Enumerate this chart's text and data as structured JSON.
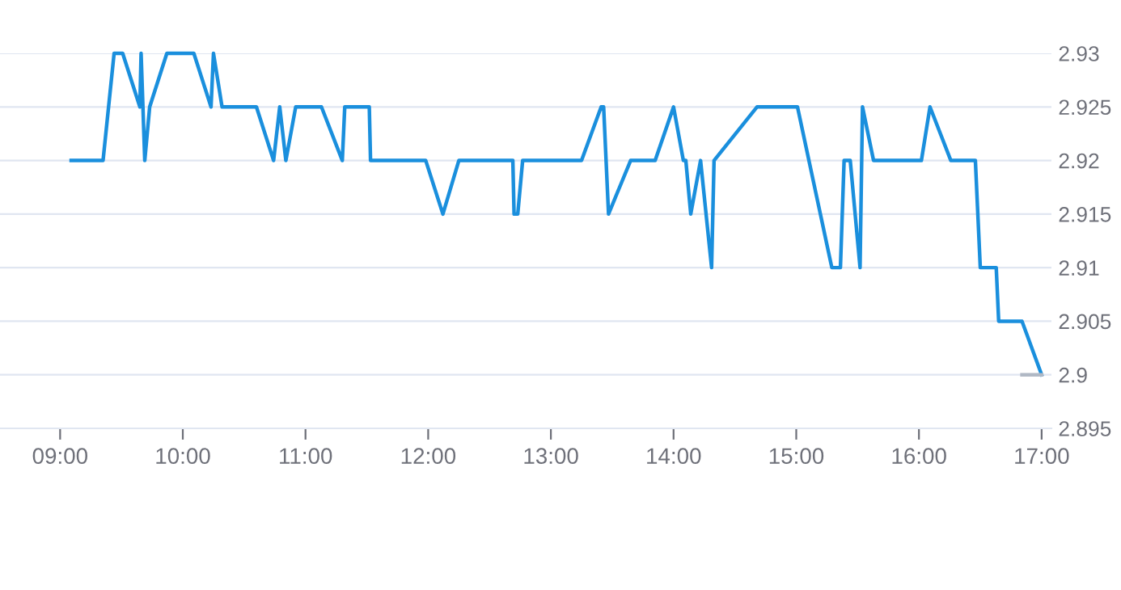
{
  "chart_data": {
    "type": "line",
    "grid": "y",
    "marker": "none",
    "line_style": "solid",
    "xlim": [
      8.51,
      17.08
    ],
    "ylim": [
      2.895,
      2.93
    ],
    "xticks": [
      {
        "value": 9,
        "label": "09:00"
      },
      {
        "value": 10,
        "label": "10:00"
      },
      {
        "value": 11,
        "label": "11:00"
      },
      {
        "value": 12,
        "label": "12:00"
      },
      {
        "value": 13,
        "label": "13:00"
      },
      {
        "value": 14,
        "label": "14:00"
      },
      {
        "value": 15,
        "label": "15:00"
      },
      {
        "value": 16,
        "label": "16:00"
      },
      {
        "value": 17,
        "label": "17:00"
      }
    ],
    "yticks": [
      2.895,
      2.9,
      2.905,
      2.91,
      2.915,
      2.92,
      2.925,
      2.93
    ],
    "series": [
      {
        "color": "#1a8fdd",
        "x": [
          9.09,
          9.35,
          9.44,
          9.51,
          9.65,
          9.66,
          9.69,
          9.73,
          9.87,
          10.09,
          10.23,
          10.25,
          10.32,
          10.6,
          10.74,
          10.79,
          10.84,
          10.92,
          11.13,
          11.3,
          11.32,
          11.52,
          11.53,
          11.98,
          12.12,
          12.25,
          12.69,
          12.7,
          12.73,
          12.77,
          13.25,
          13.41,
          13.43,
          13.47,
          13.65,
          13.85,
          14.0,
          14.08,
          14.1,
          14.14,
          14.22,
          14.31,
          14.33,
          14.68,
          15.01,
          15.29,
          15.36,
          15.39,
          15.44,
          15.52,
          15.54,
          15.63,
          16.02,
          16.09,
          16.26,
          16.46,
          16.5,
          16.63,
          16.65,
          16.84,
          17.0
        ],
        "values": [
          2.92,
          2.92,
          2.93,
          2.93,
          2.925,
          2.93,
          2.92,
          2.925,
          2.93,
          2.93,
          2.925,
          2.93,
          2.925,
          2.925,
          2.92,
          2.925,
          2.92,
          2.925,
          2.925,
          2.92,
          2.925,
          2.925,
          2.92,
          2.92,
          2.915,
          2.92,
          2.92,
          2.915,
          2.915,
          2.92,
          2.92,
          2.925,
          2.925,
          2.915,
          2.92,
          2.92,
          2.925,
          2.92,
          2.92,
          2.915,
          2.92,
          2.91,
          2.92,
          2.925,
          2.925,
          2.91,
          2.91,
          2.92,
          2.92,
          2.91,
          2.925,
          2.92,
          2.92,
          2.925,
          2.92,
          2.92,
          2.91,
          2.91,
          2.905,
          2.905,
          2.9
        ]
      },
      {
        "color": "#b0b8c4",
        "x": [
          16.84,
          17.0
        ],
        "values": [
          2.9,
          2.9
        ]
      }
    ]
  }
}
